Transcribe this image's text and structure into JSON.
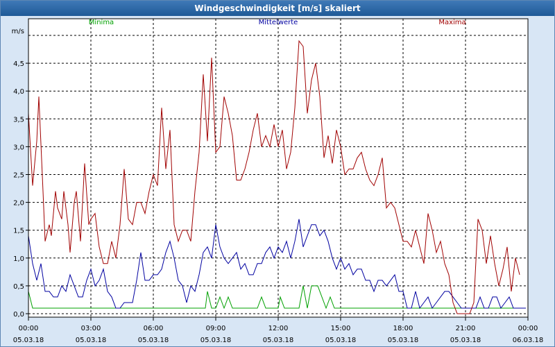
{
  "window": {
    "title": "Windgeschwindigkeit [m/s] skaliert"
  },
  "chart_data": {
    "type": "line",
    "title": "Windgeschwindigkeit [m/s] skaliert",
    "ylabel": "m/s",
    "ylim": [
      0,
      5
    ],
    "xlim": [
      0,
      24
    ],
    "grid": true,
    "legend_placement": "top",
    "y_ticks": [
      "0,0",
      "0,5",
      "1,0",
      "1,5",
      "2,0",
      "2,5",
      "3,0",
      "3,5",
      "4,0",
      "4,5"
    ],
    "x_ticks": [
      {
        "time": "00:00",
        "date": "05.03.18"
      },
      {
        "time": "03:00",
        "date": "05.03.18"
      },
      {
        "time": "06:00",
        "date": "05.03.18"
      },
      {
        "time": "09:00",
        "date": "05.03.18"
      },
      {
        "time": "12:00",
        "date": "05.03.18"
      },
      {
        "time": "15:00",
        "date": "05.03.18"
      },
      {
        "time": "18:00",
        "date": "05.03.18"
      },
      {
        "time": "21:00",
        "date": "05.03.18"
      },
      {
        "time": "00:00",
        "date": "06.03.18"
      }
    ],
    "series": [
      {
        "name": "Minima",
        "color": "#00a000",
        "points": [
          [
            0,
            0.4
          ],
          [
            0.2,
            0.1
          ],
          [
            8.5,
            0.1
          ],
          [
            8.6,
            0.4
          ],
          [
            8.8,
            0.1
          ],
          [
            9.0,
            0.1
          ],
          [
            9.2,
            0.3
          ],
          [
            9.4,
            0.1
          ],
          [
            9.6,
            0.3
          ],
          [
            9.8,
            0.1
          ],
          [
            11.0,
            0.1
          ],
          [
            11.2,
            0.3
          ],
          [
            11.4,
            0.1
          ],
          [
            12.0,
            0.1
          ],
          [
            12.1,
            0.3
          ],
          [
            12.3,
            0.1
          ],
          [
            13.0,
            0.1
          ],
          [
            13.2,
            0.5
          ],
          [
            13.4,
            0.1
          ],
          [
            13.6,
            0.5
          ],
          [
            13.9,
            0.5
          ],
          [
            14.1,
            0.3
          ],
          [
            14.3,
            0.1
          ],
          [
            14.5,
            0.3
          ],
          [
            14.7,
            0.1
          ],
          [
            23.9,
            0.1
          ]
        ]
      },
      {
        "name": "Mittelwerte",
        "color": "#0000a0",
        "points": [
          [
            0,
            1.4
          ],
          [
            0.2,
            0.9
          ],
          [
            0.4,
            0.6
          ],
          [
            0.6,
            0.9
          ],
          [
            0.8,
            0.4
          ],
          [
            1.0,
            0.4
          ],
          [
            1.2,
            0.3
          ],
          [
            1.4,
            0.3
          ],
          [
            1.6,
            0.5
          ],
          [
            1.8,
            0.4
          ],
          [
            2.0,
            0.7
          ],
          [
            2.2,
            0.5
          ],
          [
            2.4,
            0.3
          ],
          [
            2.6,
            0.3
          ],
          [
            2.8,
            0.6
          ],
          [
            3.0,
            0.8
          ],
          [
            3.2,
            0.5
          ],
          [
            3.4,
            0.6
          ],
          [
            3.6,
            0.8
          ],
          [
            3.8,
            0.4
          ],
          [
            4.0,
            0.3
          ],
          [
            4.2,
            0.1
          ],
          [
            4.4,
            0.1
          ],
          [
            4.6,
            0.2
          ],
          [
            4.8,
            0.2
          ],
          [
            5.0,
            0.2
          ],
          [
            5.2,
            0.6
          ],
          [
            5.4,
            1.1
          ],
          [
            5.6,
            0.6
          ],
          [
            5.8,
            0.6
          ],
          [
            6.0,
            0.7
          ],
          [
            6.2,
            0.7
          ],
          [
            6.4,
            0.8
          ],
          [
            6.6,
            1.1
          ],
          [
            6.8,
            1.3
          ],
          [
            7.0,
            1.0
          ],
          [
            7.2,
            0.6
          ],
          [
            7.4,
            0.5
          ],
          [
            7.6,
            0.2
          ],
          [
            7.8,
            0.5
          ],
          [
            8.0,
            0.4
          ],
          [
            8.2,
            0.7
          ],
          [
            8.4,
            1.1
          ],
          [
            8.6,
            1.2
          ],
          [
            8.8,
            1.0
          ],
          [
            9.0,
            1.6
          ],
          [
            9.2,
            1.2
          ],
          [
            9.4,
            1.0
          ],
          [
            9.6,
            0.9
          ],
          [
            9.8,
            1.0
          ],
          [
            10.0,
            1.1
          ],
          [
            10.2,
            0.8
          ],
          [
            10.4,
            0.9
          ],
          [
            10.6,
            0.7
          ],
          [
            10.8,
            0.7
          ],
          [
            11.0,
            0.9
          ],
          [
            11.2,
            0.9
          ],
          [
            11.4,
            1.1
          ],
          [
            11.6,
            1.2
          ],
          [
            11.8,
            1.0
          ],
          [
            12.0,
            1.2
          ],
          [
            12.2,
            1.1
          ],
          [
            12.4,
            1.3
          ],
          [
            12.6,
            1.0
          ],
          [
            12.8,
            1.3
          ],
          [
            13.0,
            1.7
          ],
          [
            13.2,
            1.2
          ],
          [
            13.4,
            1.4
          ],
          [
            13.6,
            1.6
          ],
          [
            13.8,
            1.6
          ],
          [
            14.0,
            1.4
          ],
          [
            14.2,
            1.5
          ],
          [
            14.4,
            1.3
          ],
          [
            14.6,
            1.0
          ],
          [
            14.8,
            0.8
          ],
          [
            15.0,
            1.0
          ],
          [
            15.2,
            0.8
          ],
          [
            15.4,
            0.9
          ],
          [
            15.6,
            0.7
          ],
          [
            15.8,
            0.8
          ],
          [
            16.0,
            0.8
          ],
          [
            16.2,
            0.6
          ],
          [
            16.4,
            0.6
          ],
          [
            16.6,
            0.4
          ],
          [
            16.8,
            0.6
          ],
          [
            17.0,
            0.6
          ],
          [
            17.2,
            0.5
          ],
          [
            17.4,
            0.6
          ],
          [
            17.6,
            0.7
          ],
          [
            17.8,
            0.4
          ],
          [
            18.0,
            0.4
          ],
          [
            18.2,
            0.1
          ],
          [
            18.4,
            0.1
          ],
          [
            18.6,
            0.4
          ],
          [
            18.8,
            0.1
          ],
          [
            19.0,
            0.2
          ],
          [
            19.2,
            0.3
          ],
          [
            19.4,
            0.1
          ],
          [
            19.6,
            0.2
          ],
          [
            19.8,
            0.3
          ],
          [
            20.0,
            0.4
          ],
          [
            20.2,
            0.4
          ],
          [
            20.4,
            0.3
          ],
          [
            20.6,
            0.2
          ],
          [
            20.8,
            0.1
          ],
          [
            21.0,
            0.1
          ],
          [
            21.5,
            0.1
          ],
          [
            21.7,
            0.3
          ],
          [
            21.9,
            0.1
          ],
          [
            22.1,
            0.1
          ],
          [
            22.3,
            0.3
          ],
          [
            22.5,
            0.3
          ],
          [
            22.7,
            0.1
          ],
          [
            22.9,
            0.2
          ],
          [
            23.1,
            0.3
          ],
          [
            23.3,
            0.1
          ],
          [
            23.9,
            0.1
          ]
        ]
      },
      {
        "name": "Maxima",
        "color": "#a00000",
        "points": [
          [
            0,
            3.6
          ],
          [
            0.2,
            2.3
          ],
          [
            0.4,
            3.1
          ],
          [
            0.5,
            3.9
          ],
          [
            0.7,
            2.2
          ],
          [
            0.8,
            1.3
          ],
          [
            1.0,
            1.6
          ],
          [
            1.1,
            1.4
          ],
          [
            1.3,
            2.2
          ],
          [
            1.4,
            1.9
          ],
          [
            1.6,
            1.7
          ],
          [
            1.7,
            2.2
          ],
          [
            1.9,
            1.6
          ],
          [
            2.0,
            1.1
          ],
          [
            2.2,
            2.0
          ],
          [
            2.3,
            2.2
          ],
          [
            2.5,
            1.3
          ],
          [
            2.7,
            2.7
          ],
          [
            2.9,
            1.6
          ],
          [
            3.0,
            1.7
          ],
          [
            3.2,
            1.8
          ],
          [
            3.4,
            1.2
          ],
          [
            3.6,
            0.9
          ],
          [
            3.8,
            0.9
          ],
          [
            4.0,
            1.3
          ],
          [
            4.2,
            1.0
          ],
          [
            4.4,
            1.6
          ],
          [
            4.6,
            2.6
          ],
          [
            4.8,
            1.7
          ],
          [
            5.0,
            1.6
          ],
          [
            5.2,
            2.0
          ],
          [
            5.4,
            2.0
          ],
          [
            5.6,
            1.8
          ],
          [
            5.8,
            2.2
          ],
          [
            6.0,
            2.5
          ],
          [
            6.2,
            2.3
          ],
          [
            6.4,
            3.7
          ],
          [
            6.6,
            2.6
          ],
          [
            6.8,
            3.3
          ],
          [
            7.0,
            1.6
          ],
          [
            7.2,
            1.3
          ],
          [
            7.4,
            1.5
          ],
          [
            7.6,
            1.5
          ],
          [
            7.8,
            1.3
          ],
          [
            8.0,
            2.2
          ],
          [
            8.2,
            2.9
          ],
          [
            8.4,
            4.3
          ],
          [
            8.6,
            3.1
          ],
          [
            8.8,
            4.6
          ],
          [
            9.0,
            2.9
          ],
          [
            9.2,
            3.0
          ],
          [
            9.4,
            3.9
          ],
          [
            9.6,
            3.6
          ],
          [
            9.8,
            3.2
          ],
          [
            10.0,
            2.4
          ],
          [
            10.2,
            2.4
          ],
          [
            10.4,
            2.6
          ],
          [
            10.6,
            2.9
          ],
          [
            10.8,
            3.3
          ],
          [
            11.0,
            3.6
          ],
          [
            11.2,
            3.0
          ],
          [
            11.4,
            3.2
          ],
          [
            11.6,
            3.0
          ],
          [
            11.8,
            3.4
          ],
          [
            12.0,
            3.0
          ],
          [
            12.2,
            3.3
          ],
          [
            12.4,
            2.6
          ],
          [
            12.6,
            2.9
          ],
          [
            12.8,
            3.7
          ],
          [
            13.0,
            4.9
          ],
          [
            13.2,
            4.8
          ],
          [
            13.4,
            3.6
          ],
          [
            13.6,
            4.2
          ],
          [
            13.8,
            4.5
          ],
          [
            14.0,
            3.9
          ],
          [
            14.2,
            2.8
          ],
          [
            14.4,
            3.2
          ],
          [
            14.6,
            2.7
          ],
          [
            14.8,
            3.3
          ],
          [
            15.0,
            3.0
          ],
          [
            15.2,
            2.5
          ],
          [
            15.4,
            2.6
          ],
          [
            15.6,
            2.6
          ],
          [
            15.8,
            2.8
          ],
          [
            16.0,
            2.9
          ],
          [
            16.2,
            2.6
          ],
          [
            16.4,
            2.4
          ],
          [
            16.6,
            2.3
          ],
          [
            16.8,
            2.5
          ],
          [
            17.0,
            2.8
          ],
          [
            17.2,
            1.9
          ],
          [
            17.4,
            2.0
          ],
          [
            17.6,
            1.9
          ],
          [
            17.8,
            1.6
          ],
          [
            18.0,
            1.3
          ],
          [
            18.2,
            1.3
          ],
          [
            18.4,
            1.2
          ],
          [
            18.6,
            1.5
          ],
          [
            18.8,
            1.2
          ],
          [
            19.0,
            0.9
          ],
          [
            19.2,
            1.8
          ],
          [
            19.4,
            1.5
          ],
          [
            19.6,
            1.1
          ],
          [
            19.8,
            1.3
          ],
          [
            20.0,
            0.9
          ],
          [
            20.2,
            0.7
          ],
          [
            20.4,
            0.2
          ],
          [
            20.6,
            0.0
          ],
          [
            20.8,
            0.0
          ],
          [
            21.0,
            0.0
          ],
          [
            21.2,
            0.0
          ],
          [
            21.4,
            0.2
          ],
          [
            21.6,
            1.7
          ],
          [
            21.8,
            1.5
          ],
          [
            22.0,
            0.9
          ],
          [
            22.2,
            1.4
          ],
          [
            22.4,
            0.9
          ],
          [
            22.6,
            0.5
          ],
          [
            22.8,
            0.8
          ],
          [
            23.0,
            1.2
          ],
          [
            23.2,
            0.4
          ],
          [
            23.4,
            1.0
          ],
          [
            23.6,
            0.7
          ]
        ]
      }
    ]
  }
}
